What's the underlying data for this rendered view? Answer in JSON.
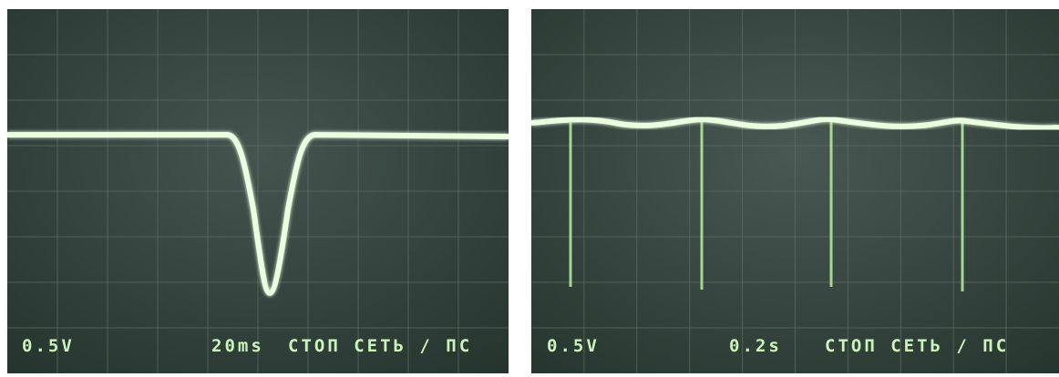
{
  "panels": [
    {
      "volts": "0.5V",
      "timebase": "20ms",
      "status": "СТОП СЕТЬ / ПС"
    },
    {
      "volts": "0.5V",
      "timebase": "0.2s",
      "status": "СТОП СЕТЬ / ПС"
    }
  ]
}
